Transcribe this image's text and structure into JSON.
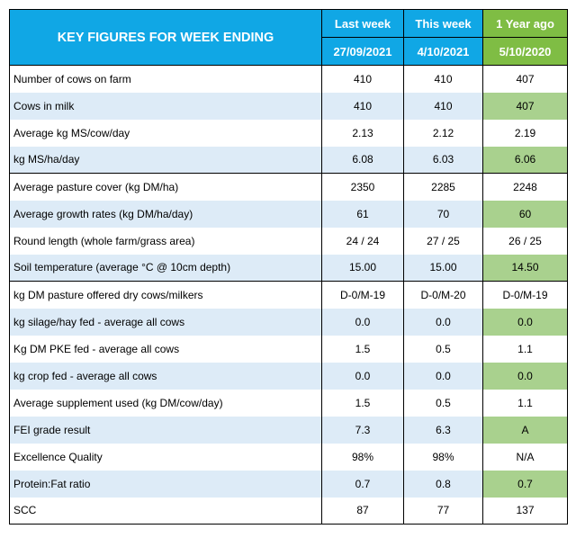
{
  "header": {
    "title": "KEY FIGURES FOR WEEK ENDING",
    "col_last_week": "Last week",
    "col_this_week": "This week",
    "col_year_ago": "1 Year ago",
    "date_last_week": "27/09/2021",
    "date_this_week": "4/10/2021",
    "date_year_ago": "5/10/2020"
  },
  "rows": [
    {
      "label": "Number of cows on farm",
      "last": "410",
      "this": "410",
      "year": "407"
    },
    {
      "label": "Cows in milk",
      "last": "410",
      "this": "410",
      "year": "407"
    },
    {
      "label": "Average kg MS/cow/day",
      "last": "2.13",
      "this": "2.12",
      "year": "2.19"
    },
    {
      "label": "kg MS/ha/day",
      "last": "6.08",
      "this": "6.03",
      "year": "6.06"
    },
    {
      "label": "Average pasture cover (kg DM/ha)",
      "last": "2350",
      "this": "2285",
      "year": "2248"
    },
    {
      "label": "Average growth rates (kg DM/ha/day)",
      "last": "61",
      "this": "70",
      "year": "60"
    },
    {
      "label": "Round length (whole farm/grass area)",
      "last": "24 / 24",
      "this": "27 / 25",
      "year": "26 / 25"
    },
    {
      "label": "Soil temperature (average °C  @ 10cm depth)",
      "last": "15.00",
      "this": "15.00",
      "year": "14.50"
    },
    {
      "label": "kg DM pasture offered dry cows/milkers",
      "last": "D-0/M-19",
      "this": "D-0/M-20",
      "year": "D-0/M-19"
    },
    {
      "label": "kg silage/hay fed - average all cows",
      "last": "0.0",
      "this": "0.0",
      "year": "0.0"
    },
    {
      "label": "Kg DM PKE fed - average all cows",
      "last": "1.5",
      "this": "0.5",
      "year": "1.1"
    },
    {
      "label": "kg crop fed - average all cows",
      "last": "0.0",
      "this": "0.0",
      "year": "0.0"
    },
    {
      "label": "Average supplement used (kg DM/cow/day)",
      "last": "1.5",
      "this": "0.5",
      "year": "1.1"
    },
    {
      "label": "FEI grade result",
      "last": "7.3",
      "this": "6.3",
      "year": "A"
    },
    {
      "label": "Excellence Quality",
      "last": "98%",
      "this": "98%",
      "year": "N/A"
    },
    {
      "label": "Protein:Fat ratio",
      "last": "0.7",
      "this": "0.8",
      "year": "0.7"
    },
    {
      "label": "SCC",
      "last": "87",
      "this": "77",
      "year": "137"
    }
  ],
  "colors": {
    "header_blue": "#10a7e5",
    "year_header_green": "#7fbd44",
    "alt_row_blue": "#ddebf7",
    "alt_row_green": "#a9d18e"
  }
}
